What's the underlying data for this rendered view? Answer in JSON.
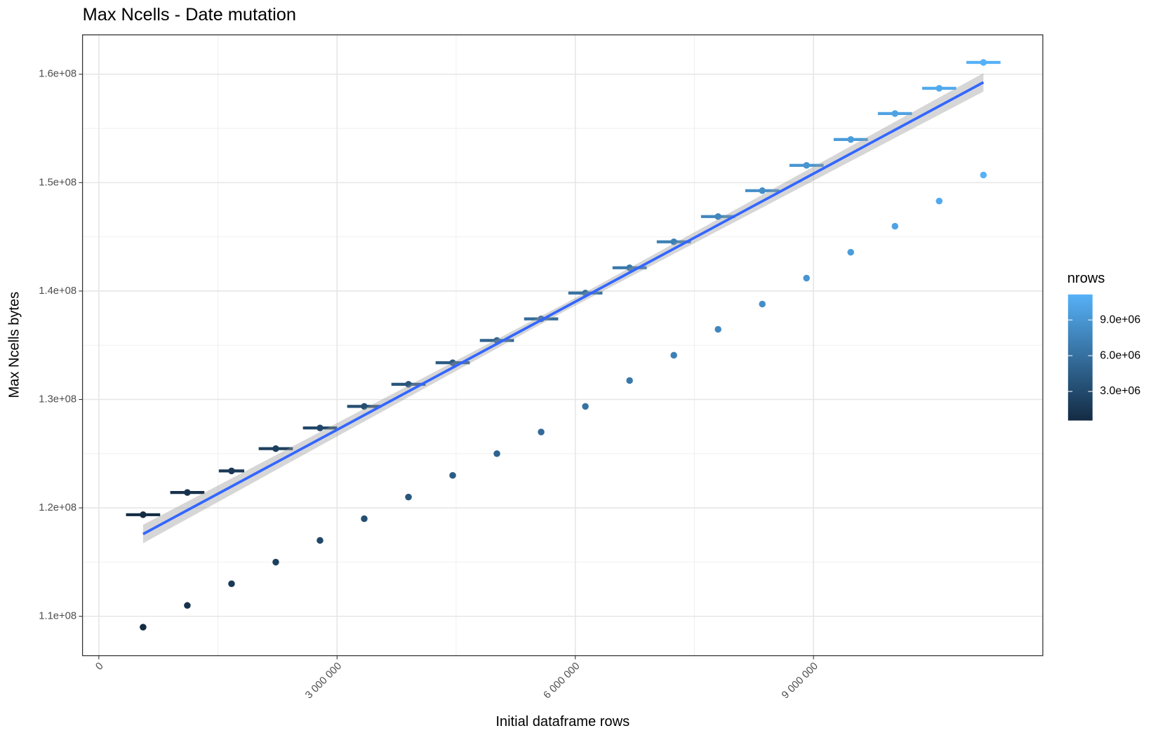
{
  "chart_data": {
    "type": "scatter",
    "title": "Max Ncells - Date mutation",
    "xlabel": "Initial dataframe rows",
    "ylabel": "Max Ncells bytes",
    "x": [
      557000,
      1114000,
      1671000,
      2228000,
      2785000,
      3342000,
      3899000,
      4456000,
      5013000,
      5570000,
      6127000,
      6684000,
      7241000,
      7798000,
      8355000,
      8912000,
      9469000,
      10026000,
      10583000,
      11140000
    ],
    "series": [
      {
        "values": [
          119370000,
          121420000,
          123410000,
          125460000,
          127370000,
          129360000,
          131400000,
          133390000,
          135440000,
          137430000,
          139820000,
          142150000,
          144540000,
          146870000,
          149260000,
          151590000,
          153980000,
          156370000,
          158700000,
          161090000
        ],
        "xerr": [
          215000,
          215000,
          160000,
          215000,
          215000,
          215000,
          215000,
          215000,
          215000,
          215000,
          215000,
          215000,
          215000,
          215000,
          215000,
          215000,
          215000,
          215000,
          215000,
          215000
        ]
      },
      {
        "values": [
          109000000,
          111000000,
          113000000,
          115000000,
          117000000,
          119000000,
          121000000,
          123000000,
          125000000,
          127000000,
          129360000,
          131750000,
          134080000,
          136470000,
          138800000,
          141190000,
          143580000,
          145980000,
          148300000,
          150700000
        ]
      }
    ],
    "fit": {
      "color": "#3366FF",
      "band_color": "#999999",
      "x": [
        557000,
        5848500,
        11140000
      ],
      "y": [
        117590000,
        138420000,
        159250000
      ],
      "lower": [
        116740000,
        138070000,
        158400000
      ],
      "upper": [
        118440000,
        138770000,
        160100000
      ]
    },
    "colorbar": {
      "title": "nrows",
      "limits": [
        557000,
        11140000
      ],
      "low": "#132B43",
      "high": "#56B1F7",
      "ticks": [
        {
          "value": 3000000,
          "label": "3.0e+06"
        },
        {
          "value": 6000000,
          "label": "6.0e+06"
        },
        {
          "value": 9000000,
          "label": "9.0e+06"
        }
      ]
    },
    "xlim": [
      -205600,
      11887850
    ],
    "ylim": [
      106370000,
      163630000
    ],
    "xticks": [
      0,
      {
        "value": 3000000,
        "label": "3 000 000"
      },
      {
        "value": 6000000,
        "label": "6 000 000"
      },
      {
        "value": 9000000,
        "label": "9 000 000"
      }
    ],
    "yticks": [
      {
        "value": 110000000,
        "label": "1.1e+08"
      },
      {
        "value": 120000000,
        "label": "1.2e+08"
      },
      {
        "value": 130000000,
        "label": "1.3e+08"
      },
      {
        "value": 140000000,
        "label": "1.4e+08"
      },
      {
        "value": 150000000,
        "label": "1.5e+08"
      },
      {
        "value": 160000000,
        "label": "1.6e+08"
      }
    ],
    "grid": true
  }
}
